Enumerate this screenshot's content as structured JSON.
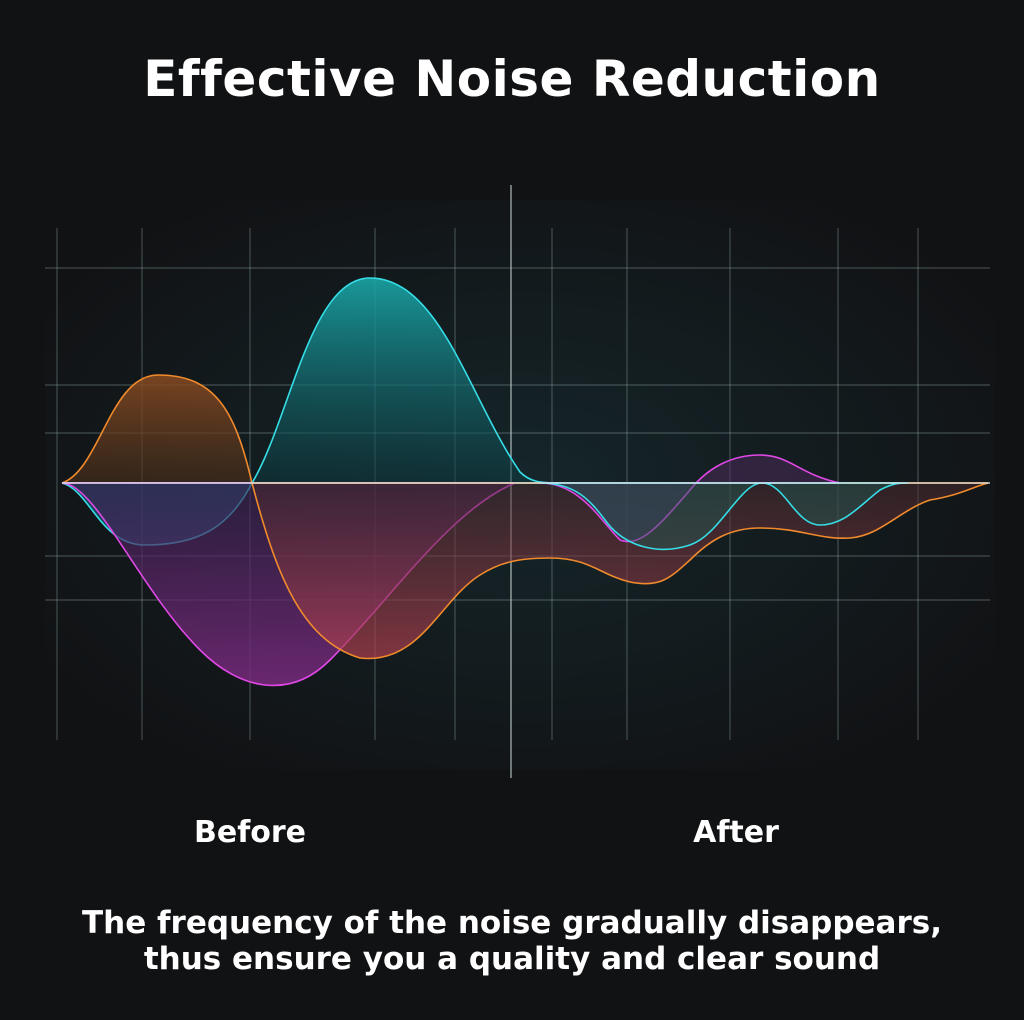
{
  "title": "Effective Noise Reduction",
  "labels": {
    "before": "Before",
    "after": "After"
  },
  "caption": {
    "line1": "The frequency of the noise gradually disappears,",
    "line2": "thus ensure you a quality and clear sound"
  },
  "colors": {
    "background": "#111214",
    "cyan": "#35dde6",
    "orange": "#f08a2c",
    "magenta": "#e048e6",
    "grid": "#9fb4b4"
  },
  "waves": [
    {
      "name": "cyan-wave",
      "color": "cyan"
    },
    {
      "name": "orange-wave",
      "color": "orange"
    },
    {
      "name": "magenta-wave",
      "color": "magenta"
    }
  ]
}
